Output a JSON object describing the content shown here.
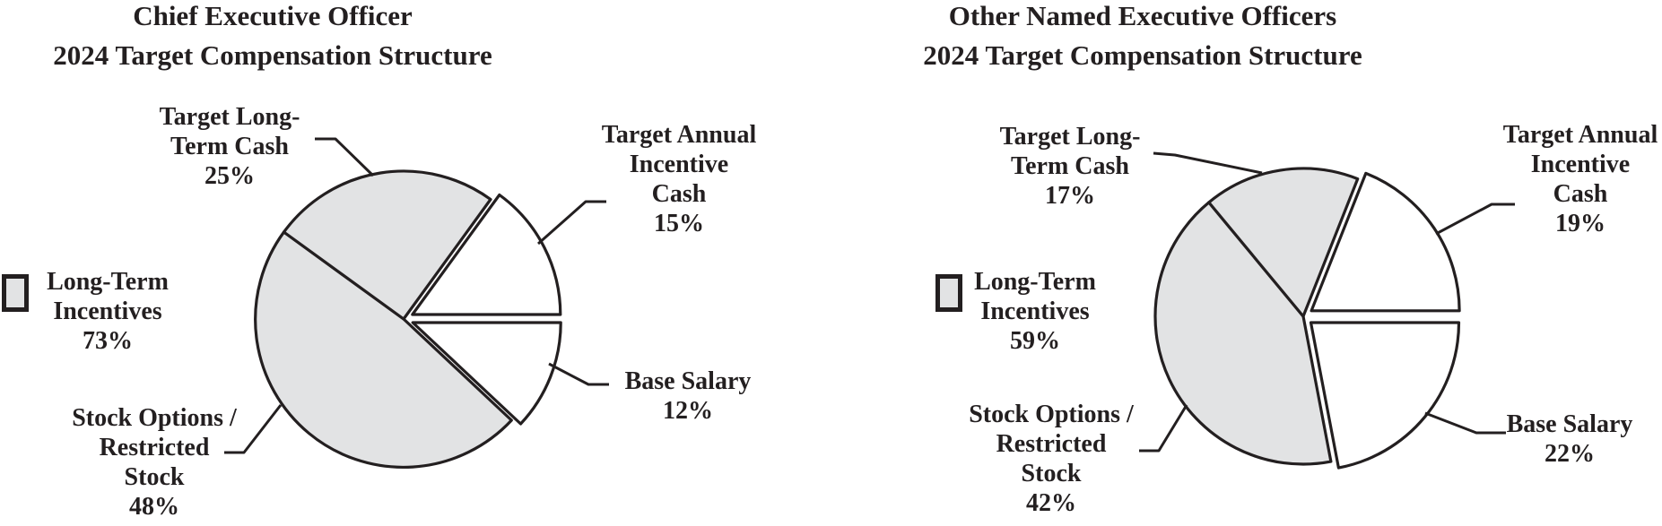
{
  "colors": {
    "long_term_fill": "#e2e3e4",
    "other_fill": "#ffffff",
    "stroke": "#231f20",
    "text": "#231f20"
  },
  "chart_data": [
    {
      "type": "pie",
      "title": [
        "Chief Executive Officer",
        "2024 Target Compensation Structure"
      ],
      "slices": [
        {
          "label": "Target Annual Incentive Cash",
          "label_lines": [
            "Target Annual",
            "Incentive",
            "Cash"
          ],
          "value": 15,
          "pct_label": "15%",
          "group": "other",
          "exploded": true
        },
        {
          "label": "Base Salary",
          "label_lines": [
            "Base Salary"
          ],
          "value": 12,
          "pct_label": "12%",
          "group": "other",
          "exploded": true
        },
        {
          "label": "Stock Options / Restricted Stock",
          "label_lines": [
            "Stock Options /",
            "Restricted",
            "Stock"
          ],
          "value": 48,
          "pct_label": "48%",
          "group": "long_term",
          "exploded": false
        },
        {
          "label": "Target Long-Term Cash",
          "label_lines": [
            "Target Long-",
            "Term Cash"
          ],
          "value": 25,
          "pct_label": "25%",
          "group": "long_term",
          "exploded": false
        }
      ],
      "legend": {
        "lines": [
          "Long-Term",
          "Incentives"
        ],
        "value": 73,
        "pct_label": "73%"
      }
    },
    {
      "type": "pie",
      "title": [
        "Other Named Executive Officers",
        "2024 Target Compensation Structure"
      ],
      "slices": [
        {
          "label": "Target Annual Incentive Cash",
          "label_lines": [
            "Target Annual",
            "Incentive",
            "Cash"
          ],
          "value": 19,
          "pct_label": "19%",
          "group": "other",
          "exploded": true
        },
        {
          "label": "Base Salary",
          "label_lines": [
            "Base Salary"
          ],
          "value": 22,
          "pct_label": "22%",
          "group": "other",
          "exploded": true
        },
        {
          "label": "Stock Options / Restricted Stock",
          "label_lines": [
            "Stock Options /",
            "Restricted",
            "Stock"
          ],
          "value": 42,
          "pct_label": "42%",
          "group": "long_term",
          "exploded": false
        },
        {
          "label": "Target Long-Term Cash",
          "label_lines": [
            "Target Long-",
            "Term Cash"
          ],
          "value": 17,
          "pct_label": "17%",
          "group": "long_term",
          "exploded": false
        }
      ],
      "legend": {
        "lines": [
          "Long-Term",
          "Incentives"
        ],
        "value": 59,
        "pct_label": "59%"
      }
    }
  ]
}
